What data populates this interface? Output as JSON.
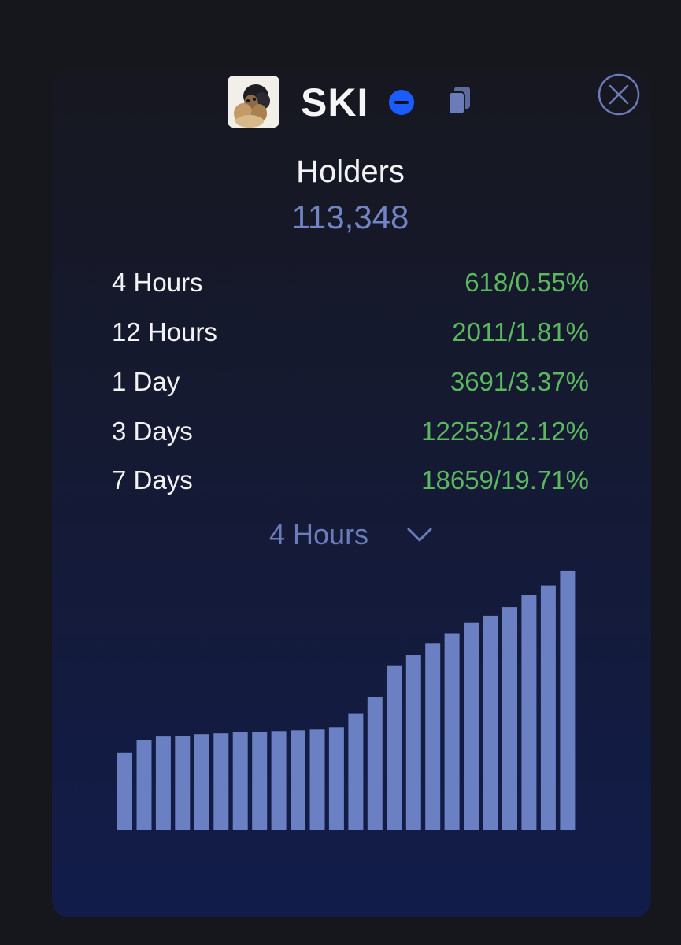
{
  "token": {
    "name": "SKI",
    "logo_icon": "dog-avatar-icon",
    "verify_icon": "verified-badge-icon",
    "copy_icon": "copy-icon",
    "verify_color": "#1a5cff"
  },
  "close_icon": "close-circle-icon",
  "holders": {
    "title": "Holders",
    "count": "113,348"
  },
  "stats": [
    {
      "label": "4 Hours",
      "value": "618/0.55%"
    },
    {
      "label": "12 Hours",
      "value": "2011/1.81%"
    },
    {
      "label": "1 Day",
      "value": "3691/3.37%"
    },
    {
      "label": "3 Days",
      "value": "12253/12.12%"
    },
    {
      "label": "7 Days",
      "value": "18659/19.71%"
    }
  ],
  "period_select": {
    "selected": "4 Hours",
    "icon": "chevron-down-icon"
  },
  "colors": {
    "accent": "#7184c4",
    "positive": "#5bb85f",
    "bar": "#6b80c2"
  },
  "chart_data": {
    "type": "bar",
    "values": [
      100,
      116,
      121,
      122,
      124,
      125,
      127,
      127,
      128,
      129,
      130,
      133,
      150,
      172,
      212,
      226,
      241,
      254,
      268,
      277,
      288,
      304,
      316,
      335
    ],
    "ylim": [
      0,
      340
    ]
  }
}
